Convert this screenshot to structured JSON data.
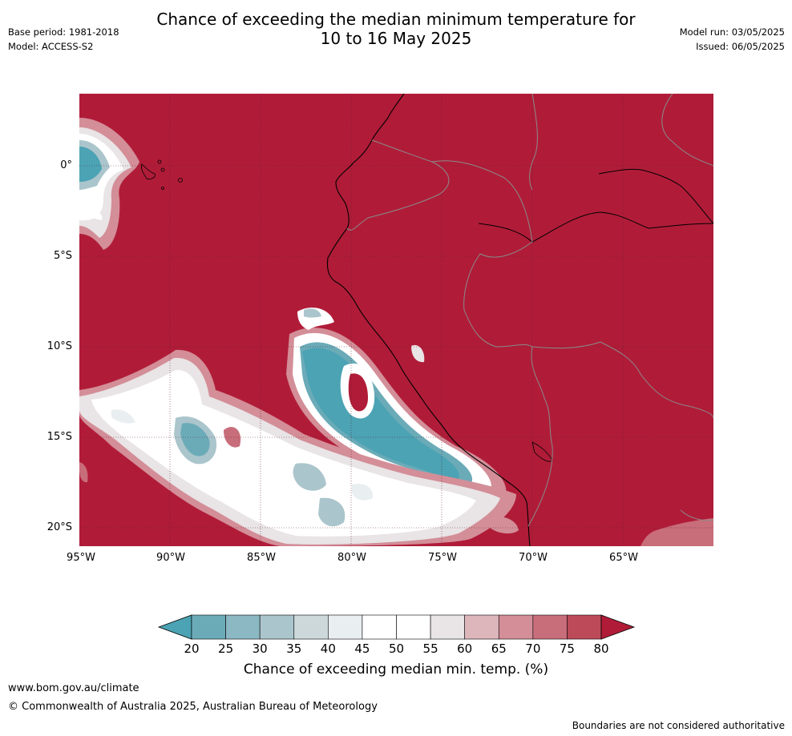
{
  "title_line1": "Chance of exceeding the median minimum temperature for",
  "title_line2": "10 to 16 May 2025",
  "base_period": "Base period: 1981-2018",
  "model": "Model: ACCESS-S2",
  "model_run": "Model run: 03/05/2025",
  "issued": "Issued: 06/05/2025",
  "map": {
    "lat_labels": [
      "0°",
      "5°S",
      "10°S",
      "15°S",
      "20°S"
    ],
    "lon_labels": [
      "95°W",
      "90°W",
      "85°W",
      "80°W",
      "75°W",
      "70°W",
      "65°W"
    ]
  },
  "colorbar": {
    "labels": [
      "20",
      "25",
      "30",
      "35",
      "40",
      "45",
      "50",
      "55",
      "60",
      "65",
      "70",
      "75",
      "80"
    ],
    "colors": [
      "#4ba3b4",
      "#6babb8",
      "#8bb8c3",
      "#abc5cc",
      "#cdd8db",
      "#e9eef0",
      "#ffffff",
      "#ffffff",
      "#e9e4e6",
      "#ddb6bc",
      "#d38e98",
      "#c86d7a",
      "#bc4a59",
      "#b01c38"
    ],
    "title": "Chance of exceeding median min. temp. (%)"
  },
  "website": "www.bom.gov.au/climate",
  "copyright": "© Commonwealth of Australia 2025, Australian Bureau of Meteorology",
  "disclaimer": "Boundaries are not considered authoritative"
}
